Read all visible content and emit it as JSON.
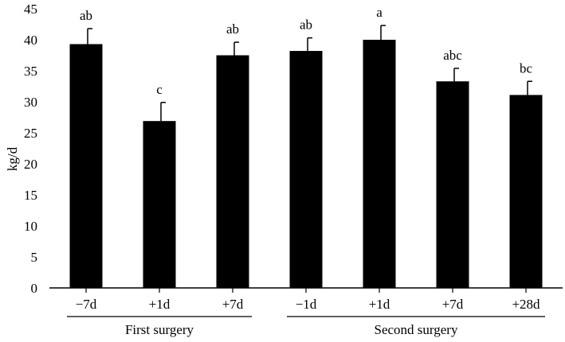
{
  "chart_data": {
    "type": "bar",
    "xlabel": "",
    "ylabel": "kg/d",
    "ylim": [
      0,
      45
    ],
    "yticks": [
      0,
      5,
      10,
      15,
      20,
      25,
      30,
      35,
      40,
      45
    ],
    "grid": false,
    "bar_color": "#000000",
    "categories": [
      "−7d",
      "+1d",
      "+7d",
      "−1d",
      "+1d",
      "+7d",
      "+28d"
    ],
    "values": [
      39.3,
      26.9,
      37.5,
      38.2,
      40.0,
      33.3,
      31.1
    ],
    "errors": [
      2.5,
      3.0,
      2.1,
      2.1,
      2.3,
      2.1,
      2.2
    ],
    "significance_labels": [
      "ab",
      "c",
      "ab",
      "ab",
      "a",
      "abc",
      "bc"
    ],
    "groups": [
      {
        "label": "First surgery",
        "start_index": 0,
        "end_index": 2
      },
      {
        "label": "Second surgery",
        "start_index": 3,
        "end_index": 6
      }
    ]
  }
}
